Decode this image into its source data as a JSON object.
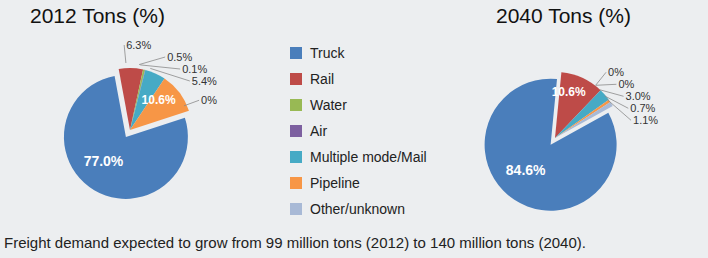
{
  "chart_data": [
    {
      "type": "pie",
      "title": "2012 Tons (%)",
      "categories": [
        "Truck",
        "Rail",
        "Water",
        "Air",
        "Multiple mode/Mail",
        "Pipeline",
        "Other/unknown"
      ],
      "values": [
        77.0,
        6.3,
        0.5,
        0.1,
        5.4,
        10.6,
        0
      ],
      "value_labels": [
        "77.0%",
        "6.3%",
        "0.5%",
        "0.1%",
        "5.4%",
        "10.6%",
        "0%"
      ],
      "colors": [
        "#4a7ebb",
        "#be4b48",
        "#98b954",
        "#7d60a0",
        "#46aac5",
        "#f79646",
        "#a8b9d6"
      ],
      "data_labels": true
    },
    {
      "type": "pie",
      "title": "2040 Tons (%)",
      "categories": [
        "Truck",
        "Rail",
        "Water",
        "Air",
        "Multiple mode/Mail",
        "Pipeline",
        "Other/unknown"
      ],
      "values": [
        84.6,
        10.6,
        0,
        0,
        3.0,
        0.7,
        1.1
      ],
      "value_labels": [
        "84.6%",
        "10.6%",
        "0%",
        "0%",
        "3.0%",
        "0.7%",
        "1.1%"
      ],
      "colors": [
        "#4a7ebb",
        "#be4b48",
        "#98b954",
        "#7d60a0",
        "#46aac5",
        "#f79646",
        "#a8b9d6"
      ],
      "data_labels": true
    }
  ],
  "caption": "Freight demand expected to grow from 99 million tons (2012) to 140 million tons (2040)."
}
